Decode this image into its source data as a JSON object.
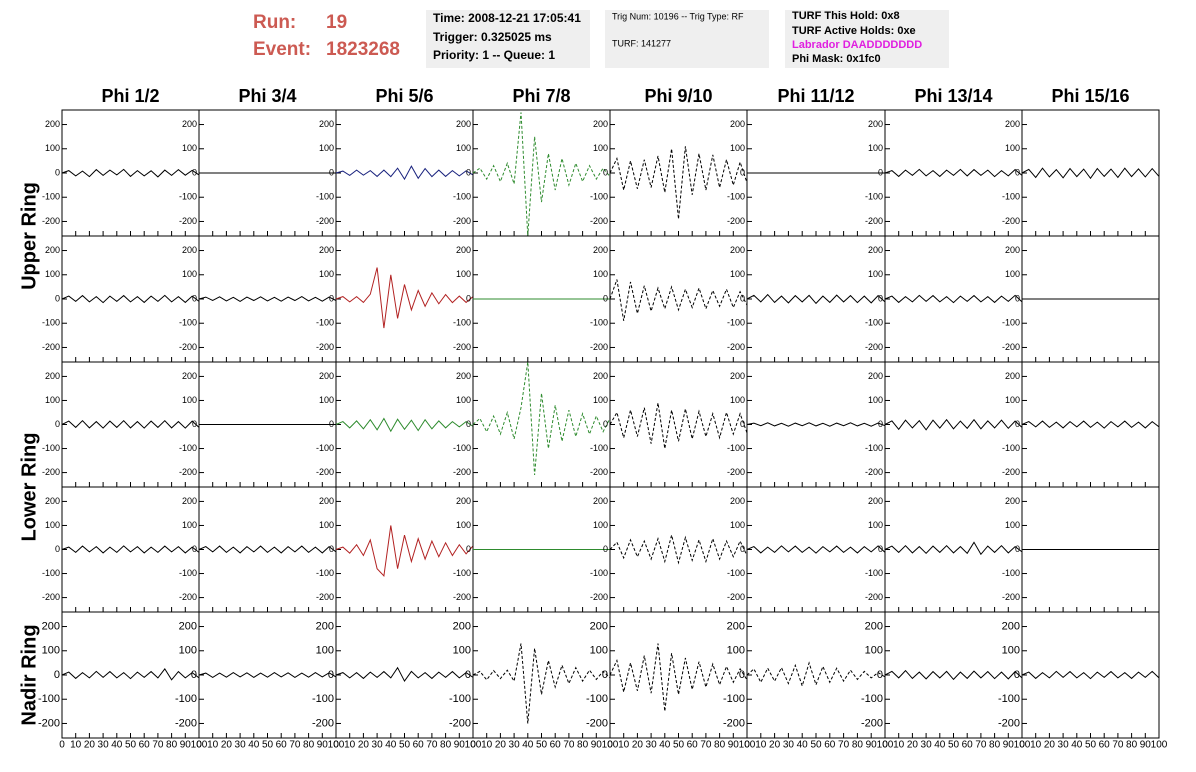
{
  "header": {
    "run_label": "Run:",
    "run": "19",
    "event_label": "Event:",
    "event": "1823268",
    "time": "Time: 2008-12-21 17:05:41",
    "trigger": "Trigger: 0.325025 ms",
    "priority": "Priority: 1 -- Queue: 1",
    "trig_num": "Trig Num: 10196 -- Trig Type: RF",
    "turf": "TURF: 141277",
    "turf_hold": "TURF This Hold: 0x8",
    "turf_active": "TURF Active Holds: 0xe",
    "labrador": "Labrador DAADDDDDDD",
    "phi_mask": "Phi Mask: 0x1fc0"
  },
  "chart_data": {
    "type": "line",
    "columns": [
      "Phi 1/2",
      "Phi 3/4",
      "Phi 5/6",
      "Phi 7/8",
      "Phi 9/10",
      "Phi 11/12",
      "Phi 13/14",
      "Phi 15/16"
    ],
    "rings": [
      "Upper Ring",
      "Lower Ring",
      "Nadir Ring"
    ],
    "x": [
      0,
      5,
      10,
      15,
      20,
      25,
      30,
      35,
      40,
      45,
      50,
      55,
      60,
      65,
      70,
      75,
      80,
      85,
      90,
      95,
      100
    ],
    "xlim": [
      0,
      100
    ],
    "xticks": [
      0,
      10,
      20,
      30,
      40,
      50,
      60,
      70,
      80,
      90,
      100
    ],
    "ylim": [
      -260,
      260
    ],
    "yticks": [
      -200,
      -100,
      0,
      100,
      200
    ],
    "panels": [
      [
        {
          "color": "#000000",
          "dashed": false,
          "values": [
            0,
            10,
            -12,
            8,
            -15,
            14,
            -10,
            12,
            -8,
            15,
            -14,
            10,
            -12,
            9,
            -16,
            12,
            -10,
            14,
            -9,
            11,
            -8
          ]
        },
        {
          "color": "#000000",
          "dashed": false,
          "values": [
            0,
            0,
            0,
            0,
            0,
            0,
            0,
            0,
            0,
            0,
            0,
            0,
            0,
            0,
            0,
            0,
            0,
            0,
            0,
            0,
            0
          ]
        },
        {
          "color": "#1a237e",
          "dashed": false,
          "values": [
            0,
            8,
            -10,
            12,
            -9,
            10,
            -14,
            12,
            -15,
            20,
            -25,
            28,
            -22,
            18,
            -15,
            12,
            -14,
            10,
            -12,
            9,
            -8
          ]
        },
        {
          "color": "#2e8b2e",
          "dashed": true,
          "values": [
            0,
            20,
            -25,
            30,
            -35,
            40,
            -45,
            250,
            -260,
            150,
            -120,
            80,
            -70,
            60,
            -50,
            40,
            -35,
            30,
            -25,
            20,
            -15
          ]
        },
        {
          "color": "#000000",
          "dashed": true,
          "values": [
            0,
            60,
            -70,
            50,
            -65,
            55,
            -60,
            70,
            -80,
            100,
            -190,
            110,
            -90,
            80,
            -70,
            75,
            -60,
            55,
            -50,
            45,
            -40
          ]
        },
        {
          "color": "#000000",
          "dashed": false,
          "values": [
            0,
            0,
            0,
            0,
            0,
            0,
            0,
            0,
            0,
            0,
            0,
            0,
            0,
            0,
            0,
            0,
            0,
            0,
            0,
            0,
            0
          ]
        },
        {
          "color": "#000000",
          "dashed": false,
          "values": [
            0,
            10,
            -14,
            12,
            -10,
            15,
            -12,
            10,
            -14,
            12,
            -10,
            15,
            -12,
            14,
            -10,
            12,
            -15,
            10,
            -12,
            14,
            -10
          ]
        },
        {
          "color": "#000000",
          "dashed": false,
          "values": [
            0,
            15,
            -18,
            20,
            -16,
            14,
            -20,
            18,
            -15,
            16,
            -22,
            18,
            -14,
            16,
            -18,
            20,
            -15,
            17,
            -16,
            18,
            -14
          ]
        }
      ],
      [
        {
          "color": "#000000",
          "dashed": false,
          "values": [
            0,
            12,
            -10,
            14,
            -12,
            10,
            -15,
            12,
            -10,
            14,
            -12,
            10,
            -14,
            12,
            -10,
            15,
            -12,
            10,
            -14,
            12,
            -10
          ]
        },
        {
          "color": "#000000",
          "dashed": false,
          "values": [
            0,
            8,
            -6,
            9,
            -8,
            7,
            -10,
            8,
            -6,
            9,
            -8,
            7,
            -9,
            8,
            -6,
            10,
            -8,
            7,
            -9,
            8,
            -6
          ]
        },
        {
          "color": "#b22222",
          "dashed": false,
          "values": [
            0,
            10,
            -12,
            10,
            -14,
            20,
            130,
            -120,
            100,
            -80,
            60,
            -45,
            35,
            -30,
            25,
            -20,
            18,
            -15,
            12,
            -14,
            10
          ]
        },
        {
          "color": "#2e8b2e",
          "dashed": false,
          "values": [
            0,
            0,
            0,
            0,
            0,
            0,
            0,
            0,
            0,
            0,
            0,
            0,
            0,
            0,
            0,
            0,
            0,
            0,
            0,
            0,
            0
          ]
        },
        {
          "color": "#000000",
          "dashed": true,
          "values": [
            0,
            80,
            -90,
            70,
            -60,
            55,
            -50,
            45,
            -40,
            50,
            -45,
            40,
            -35,
            45,
            -40,
            35,
            -30,
            40,
            -35,
            30,
            -25
          ]
        },
        {
          "color": "#000000",
          "dashed": false,
          "values": [
            0,
            15,
            -12,
            18,
            -14,
            12,
            -16,
            14,
            -12,
            15,
            -18,
            12,
            -14,
            16,
            -12,
            14,
            -15,
            12,
            -16,
            14,
            -12
          ]
        },
        {
          "color": "#000000",
          "dashed": false,
          "values": [
            0,
            12,
            -14,
            10,
            -12,
            15,
            -10,
            14,
            -12,
            10,
            -15,
            12,
            -10,
            14,
            -12,
            10,
            -14,
            12,
            -10,
            15,
            -12
          ]
        },
        {
          "color": "#000000",
          "dashed": false,
          "values": [
            0,
            0,
            0,
            0,
            0,
            0,
            0,
            0,
            0,
            0,
            0,
            0,
            0,
            0,
            0,
            0,
            0,
            0,
            0,
            0,
            0
          ]
        }
      ],
      [
        {
          "color": "#000000",
          "dashed": false,
          "values": [
            0,
            14,
            -12,
            16,
            -14,
            12,
            -15,
            14,
            -12,
            16,
            -14,
            12,
            -15,
            14,
            -12,
            16,
            -14,
            12,
            -15,
            14,
            -12
          ]
        },
        {
          "color": "#000000",
          "dashed": false,
          "values": [
            0,
            0,
            0,
            0,
            0,
            0,
            0,
            0,
            0,
            0,
            0,
            0,
            0,
            0,
            0,
            0,
            0,
            0,
            0,
            0,
            0
          ]
        },
        {
          "color": "#2e8b2e",
          "dashed": false,
          "values": [
            0,
            12,
            -14,
            15,
            -18,
            20,
            -22,
            25,
            -28,
            22,
            -20,
            18,
            -25,
            20,
            -18,
            15,
            -14,
            12,
            -10,
            12,
            -8
          ]
        },
        {
          "color": "#2e8b2e",
          "dashed": true,
          "values": [
            0,
            25,
            -30,
            35,
            -40,
            50,
            -60,
            70,
            260,
            -210,
            130,
            -100,
            80,
            -70,
            60,
            -50,
            45,
            -40,
            35,
            -30,
            25
          ]
        },
        {
          "color": "#000000",
          "dashed": true,
          "values": [
            0,
            50,
            -55,
            60,
            -50,
            70,
            -80,
            90,
            -100,
            60,
            -70,
            65,
            -60,
            55,
            -50,
            45,
            -55,
            50,
            -40,
            45,
            -35
          ]
        },
        {
          "color": "#000000",
          "dashed": false,
          "values": [
            0,
            6,
            -5,
            7,
            -6,
            5,
            -7,
            6,
            -5,
            7,
            -6,
            5,
            -7,
            6,
            -5,
            7,
            -6,
            5,
            -7,
            6,
            -5
          ]
        },
        {
          "color": "#000000",
          "dashed": false,
          "values": [
            0,
            15,
            -20,
            18,
            -14,
            16,
            -22,
            18,
            -15,
            20,
            -18,
            14,
            -16,
            20,
            -18,
            15,
            -14,
            18,
            -16,
            14,
            -12
          ]
        },
        {
          "color": "#000000",
          "dashed": false,
          "values": [
            0,
            12,
            -10,
            14,
            -12,
            10,
            -14,
            12,
            -10,
            14,
            -12,
            10,
            -15,
            12,
            -10,
            14,
            -12,
            10,
            -14,
            12,
            -10
          ]
        }
      ],
      [
        {
          "color": "#000000",
          "dashed": false,
          "values": [
            0,
            10,
            -12,
            14,
            -10,
            12,
            -14,
            10,
            -12,
            15,
            -10,
            12,
            -14,
            10,
            -12,
            14,
            -10,
            12,
            -14,
            10,
            -12
          ]
        },
        {
          "color": "#000000",
          "dashed": false,
          "values": [
            0,
            12,
            -10,
            14,
            -12,
            10,
            -14,
            12,
            -10,
            14,
            -12,
            10,
            -14,
            12,
            -10,
            14,
            -12,
            10,
            -14,
            12,
            -10
          ]
        },
        {
          "color": "#b22222",
          "dashed": false,
          "values": [
            0,
            10,
            -15,
            20,
            -25,
            40,
            -80,
            -110,
            100,
            -80,
            60,
            -50,
            45,
            -40,
            35,
            -30,
            28,
            -25,
            20,
            -18,
            15
          ]
        },
        {
          "color": "#2e8b2e",
          "dashed": false,
          "values": [
            0,
            0,
            0,
            0,
            0,
            0,
            0,
            0,
            0,
            0,
            0,
            0,
            0,
            0,
            0,
            0,
            0,
            0,
            0,
            0,
            0
          ]
        },
        {
          "color": "#000000",
          "dashed": true,
          "values": [
            0,
            30,
            -35,
            40,
            -30,
            35,
            -40,
            45,
            -50,
            60,
            -55,
            50,
            -45,
            40,
            -50,
            45,
            -40,
            35,
            -30,
            35,
            -25
          ]
        },
        {
          "color": "#000000",
          "dashed": false,
          "values": [
            0,
            12,
            -14,
            10,
            -12,
            15,
            -10,
            14,
            -12,
            10,
            -15,
            12,
            -10,
            14,
            -12,
            10,
            -14,
            12,
            -10,
            15,
            -12
          ]
        },
        {
          "color": "#000000",
          "dashed": false,
          "values": [
            0,
            14,
            -12,
            16,
            -14,
            12,
            -16,
            14,
            -12,
            16,
            -14,
            12,
            -16,
            30,
            -20,
            14,
            -12,
            16,
            -14,
            12,
            -10
          ]
        },
        {
          "color": "#000000",
          "dashed": false,
          "values": [
            0,
            0,
            0,
            0,
            0,
            0,
            0,
            0,
            0,
            0,
            0,
            0,
            0,
            0,
            0,
            0,
            0,
            0,
            0,
            0,
            0
          ]
        }
      ],
      [
        {
          "color": "#000000",
          "dashed": false,
          "values": [
            0,
            12,
            -14,
            10,
            -12,
            15,
            -10,
            14,
            -12,
            10,
            -15,
            12,
            -10,
            14,
            -12,
            25,
            -20,
            14,
            -12,
            10,
            -12
          ]
        },
        {
          "color": "#000000",
          "dashed": false,
          "values": [
            0,
            8,
            -10,
            8,
            -9,
            10,
            -8,
            9,
            -10,
            8,
            -9,
            10,
            -8,
            9,
            -10,
            8,
            -9,
            10,
            -8,
            9,
            -8
          ]
        },
        {
          "color": "#000000",
          "dashed": false,
          "values": [
            0,
            10,
            -12,
            10,
            -14,
            12,
            -10,
            14,
            -12,
            30,
            -25,
            15,
            -12,
            10,
            -14,
            12,
            -10,
            14,
            -12,
            10,
            -10
          ]
        },
        {
          "color": "#000000",
          "dashed": true,
          "values": [
            0,
            15,
            -20,
            18,
            -15,
            20,
            -25,
            130,
            -200,
            110,
            -80,
            60,
            -50,
            40,
            -35,
            30,
            -25,
            20,
            -18,
            15,
            -12
          ]
        },
        {
          "color": "#000000",
          "dashed": true,
          "values": [
            0,
            60,
            -70,
            50,
            -65,
            80,
            -75,
            130,
            -150,
            90,
            -80,
            70,
            -60,
            55,
            -50,
            45,
            -40,
            35,
            -30,
            25,
            -20
          ]
        },
        {
          "color": "#000000",
          "dashed": true,
          "values": [
            0,
            25,
            -30,
            28,
            -25,
            30,
            -35,
            40,
            -45,
            50,
            -40,
            35,
            -30,
            28,
            -25,
            20,
            -18,
            15,
            -12,
            10,
            -8
          ]
        },
        {
          "color": "#000000",
          "dashed": false,
          "values": [
            0,
            15,
            -12,
            18,
            -14,
            12,
            -16,
            14,
            -12,
            15,
            -18,
            12,
            -14,
            16,
            -12,
            14,
            -15,
            12,
            -16,
            14,
            -12
          ]
        },
        {
          "color": "#000000",
          "dashed": false,
          "values": [
            0,
            12,
            -14,
            10,
            -12,
            15,
            -10,
            14,
            -12,
            10,
            -15,
            12,
            -10,
            14,
            -12,
            10,
            -14,
            12,
            -10,
            15,
            -12
          ]
        }
      ]
    ]
  }
}
